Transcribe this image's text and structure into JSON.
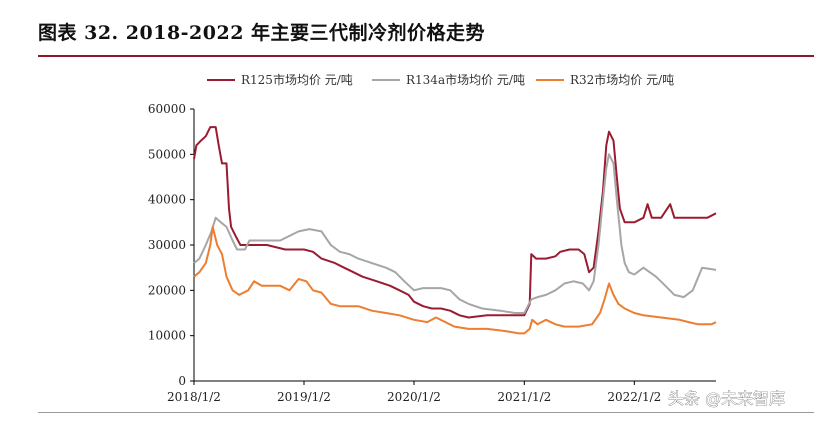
{
  "figure": {
    "title": "图表 32. 2018-2022 年主要三代制冷剂价格走势"
  },
  "watermark": {
    "text": "头条 @未来智库"
  },
  "colors": {
    "R125": "#9b1b30",
    "R134a": "#a6a6a6",
    "R32": "#ed7d31",
    "title_rule": "#8a1a2a"
  },
  "chart_data": {
    "type": "line",
    "title": "",
    "xlabel": "",
    "ylabel": "",
    "ylim": [
      0,
      60000
    ],
    "yticks": [
      0,
      10000,
      20000,
      30000,
      40000,
      50000,
      60000
    ],
    "ytick_labels": [
      "0",
      "10000",
      "20000",
      "30000",
      "40000",
      "50000",
      "60000"
    ],
    "xlim": [
      "2018-01-02",
      "2022-09-30"
    ],
    "xticks": [
      "2018-01-02",
      "2019-01-02",
      "2020-01-02",
      "2021-01-02",
      "2022-01-02"
    ],
    "xtick_labels": [
      "2018/1/2",
      "2019/1/2",
      "2020/1/2",
      "2021/1/2",
      "2022/1/2"
    ],
    "legend_position": "top",
    "grid": false,
    "series": [
      {
        "name": "R125市场均价 元/吨",
        "color": "#9b1b30",
        "points": [
          [
            "2018-01-02",
            49000
          ],
          [
            "2018-01-10",
            52000
          ],
          [
            "2018-01-25",
            53000
          ],
          [
            "2018-02-10",
            54000
          ],
          [
            "2018-02-25",
            56000
          ],
          [
            "2018-03-15",
            56000
          ],
          [
            "2018-03-25",
            52000
          ],
          [
            "2018-04-05",
            48000
          ],
          [
            "2018-04-20",
            48000
          ],
          [
            "2018-04-28",
            38000
          ],
          [
            "2018-05-05",
            34000
          ],
          [
            "2018-05-20",
            32000
          ],
          [
            "2018-06-05",
            30000
          ],
          [
            "2018-07-01",
            30000
          ],
          [
            "2018-09-01",
            30000
          ],
          [
            "2018-11-01",
            29000
          ],
          [
            "2019-01-02",
            29000
          ],
          [
            "2019-02-01",
            28500
          ],
          [
            "2019-03-01",
            27000
          ],
          [
            "2019-04-15",
            26000
          ],
          [
            "2019-05-15",
            25000
          ],
          [
            "2019-06-15",
            24000
          ],
          [
            "2019-07-15",
            23000
          ],
          [
            "2019-09-01",
            22000
          ],
          [
            "2019-10-15",
            21000
          ],
          [
            "2019-11-15",
            20000
          ],
          [
            "2019-12-15",
            19000
          ],
          [
            "2020-01-02",
            17500
          ],
          [
            "2020-02-01",
            16500
          ],
          [
            "2020-03-01",
            16000
          ],
          [
            "2020-04-01",
            16000
          ],
          [
            "2020-05-01",
            15500
          ],
          [
            "2020-06-01",
            14500
          ],
          [
            "2020-07-01",
            14000
          ],
          [
            "2020-09-01",
            14500
          ],
          [
            "2020-11-01",
            14500
          ],
          [
            "2020-12-15",
            14500
          ],
          [
            "2021-01-02",
            14500
          ],
          [
            "2021-01-20",
            17000
          ],
          [
            "2021-01-25",
            28000
          ],
          [
            "2021-02-10",
            27000
          ],
          [
            "2021-03-15",
            27000
          ],
          [
            "2021-04-15",
            27500
          ],
          [
            "2021-05-01",
            28500
          ],
          [
            "2021-06-01",
            29000
          ],
          [
            "2021-07-01",
            29000
          ],
          [
            "2021-07-20",
            28000
          ],
          [
            "2021-08-05",
            24000
          ],
          [
            "2021-08-20",
            25000
          ],
          [
            "2021-09-05",
            33000
          ],
          [
            "2021-09-20",
            42000
          ],
          [
            "2021-10-01",
            52000
          ],
          [
            "2021-10-10",
            55000
          ],
          [
            "2021-10-25",
            53000
          ],
          [
            "2021-11-05",
            45000
          ],
          [
            "2021-11-15",
            38000
          ],
          [
            "2021-12-01",
            35000
          ],
          [
            "2022-01-02",
            35000
          ],
          [
            "2022-02-01",
            36000
          ],
          [
            "2022-02-15",
            39000
          ],
          [
            "2022-03-01",
            36000
          ],
          [
            "2022-04-01",
            36000
          ],
          [
            "2022-05-01",
            39000
          ],
          [
            "2022-05-15",
            36000
          ],
          [
            "2022-07-01",
            36000
          ],
          [
            "2022-09-01",
            36000
          ],
          [
            "2022-09-30",
            37000
          ]
        ]
      },
      {
        "name": "R134a市场均价 元/吨",
        "color": "#a6a6a6",
        "points": [
          [
            "2018-01-02",
            26000
          ],
          [
            "2018-01-20",
            27000
          ],
          [
            "2018-02-10",
            30000
          ],
          [
            "2018-03-01",
            33000
          ],
          [
            "2018-03-15",
            36000
          ],
          [
            "2018-04-01",
            35000
          ],
          [
            "2018-04-20",
            34000
          ],
          [
            "2018-05-10",
            31000
          ],
          [
            "2018-05-25",
            29000
          ],
          [
            "2018-06-20",
            29000
          ],
          [
            "2018-07-05",
            31000
          ],
          [
            "2018-09-01",
            31000
          ],
          [
            "2018-10-15",
            31000
          ],
          [
            "2018-11-15",
            32000
          ],
          [
            "2018-12-15",
            33000
          ],
          [
            "2019-01-20",
            33500
          ],
          [
            "2019-03-01",
            33000
          ],
          [
            "2019-04-01",
            30000
          ],
          [
            "2019-05-01",
            28500
          ],
          [
            "2019-06-01",
            28000
          ],
          [
            "2019-07-01",
            27000
          ],
          [
            "2019-08-15",
            26000
          ],
          [
            "2019-10-01",
            25000
          ],
          [
            "2019-11-01",
            24000
          ],
          [
            "2019-12-01",
            22000
          ],
          [
            "2020-01-02",
            20000
          ],
          [
            "2020-02-01",
            20500
          ],
          [
            "2020-04-01",
            20500
          ],
          [
            "2020-05-01",
            20000
          ],
          [
            "2020-06-01",
            18000
          ],
          [
            "2020-07-01",
            17000
          ],
          [
            "2020-08-15",
            16000
          ],
          [
            "2020-10-15",
            15500
          ],
          [
            "2020-12-01",
            15000
          ],
          [
            "2021-01-02",
            15000
          ],
          [
            "2021-01-25",
            18000
          ],
          [
            "2021-02-15",
            18500
          ],
          [
            "2021-03-15",
            19000
          ],
          [
            "2021-04-15",
            20000
          ],
          [
            "2021-05-15",
            21500
          ],
          [
            "2021-06-15",
            22000
          ],
          [
            "2021-07-15",
            21500
          ],
          [
            "2021-08-05",
            20000
          ],
          [
            "2021-08-20",
            22000
          ],
          [
            "2021-09-05",
            30000
          ],
          [
            "2021-09-20",
            40000
          ],
          [
            "2021-10-01",
            47000
          ],
          [
            "2021-10-10",
            50000
          ],
          [
            "2021-10-25",
            48000
          ],
          [
            "2021-11-05",
            40000
          ],
          [
            "2021-11-20",
            30000
          ],
          [
            "2021-12-01",
            26000
          ],
          [
            "2021-12-15",
            24000
          ],
          [
            "2022-01-02",
            23500
          ],
          [
            "2022-02-01",
            25000
          ],
          [
            "2022-03-15",
            23000
          ],
          [
            "2022-04-15",
            21000
          ],
          [
            "2022-05-15",
            19000
          ],
          [
            "2022-06-15",
            18500
          ],
          [
            "2022-07-15",
            20000
          ],
          [
            "2022-08-15",
            25000
          ],
          [
            "2022-09-30",
            24500
          ]
        ]
      },
      {
        "name": "R32市场均价 元/吨",
        "color": "#ed7d31",
        "points": [
          [
            "2018-01-02",
            23000
          ],
          [
            "2018-01-20",
            24000
          ],
          [
            "2018-02-10",
            26000
          ],
          [
            "2018-02-25",
            30000
          ],
          [
            "2018-03-05",
            34000
          ],
          [
            "2018-03-20",
            30000
          ],
          [
            "2018-04-05",
            28000
          ],
          [
            "2018-04-20",
            23000
          ],
          [
            "2018-05-10",
            20000
          ],
          [
            "2018-06-01",
            19000
          ],
          [
            "2018-07-01",
            20000
          ],
          [
            "2018-07-20",
            22000
          ],
          [
            "2018-08-15",
            21000
          ],
          [
            "2018-10-15",
            21000
          ],
          [
            "2018-11-15",
            20000
          ],
          [
            "2018-12-15",
            22500
          ],
          [
            "2019-01-10",
            22000
          ],
          [
            "2019-02-01",
            20000
          ],
          [
            "2019-03-01",
            19500
          ],
          [
            "2019-04-01",
            17000
          ],
          [
            "2019-05-01",
            16500
          ],
          [
            "2019-07-01",
            16500
          ],
          [
            "2019-08-15",
            15500
          ],
          [
            "2019-10-01",
            15000
          ],
          [
            "2019-11-15",
            14500
          ],
          [
            "2020-01-02",
            13500
          ],
          [
            "2020-02-15",
            13000
          ],
          [
            "2020-03-15",
            14000
          ],
          [
            "2020-04-15",
            13000
          ],
          [
            "2020-05-15",
            12000
          ],
          [
            "2020-07-01",
            11500
          ],
          [
            "2020-09-01",
            11500
          ],
          [
            "2020-11-01",
            11000
          ],
          [
            "2020-12-15",
            10500
          ],
          [
            "2021-01-02",
            10500
          ],
          [
            "2021-01-20",
            11500
          ],
          [
            "2021-01-28",
            13500
          ],
          [
            "2021-02-15",
            12500
          ],
          [
            "2021-03-15",
            13500
          ],
          [
            "2021-04-15",
            12500
          ],
          [
            "2021-05-15",
            12000
          ],
          [
            "2021-07-01",
            12000
          ],
          [
            "2021-08-15",
            12500
          ],
          [
            "2021-09-10",
            15000
          ],
          [
            "2021-09-25",
            18000
          ],
          [
            "2021-10-10",
            21500
          ],
          [
            "2021-10-25",
            19000
          ],
          [
            "2021-11-10",
            17000
          ],
          [
            "2021-12-01",
            16000
          ],
          [
            "2022-01-02",
            15000
          ],
          [
            "2022-02-01",
            14500
          ],
          [
            "2022-04-01",
            14000
          ],
          [
            "2022-06-01",
            13500
          ],
          [
            "2022-07-01",
            13000
          ],
          [
            "2022-08-01",
            12500
          ],
          [
            "2022-09-15",
            12500
          ],
          [
            "2022-09-30",
            13000
          ]
        ]
      }
    ]
  }
}
